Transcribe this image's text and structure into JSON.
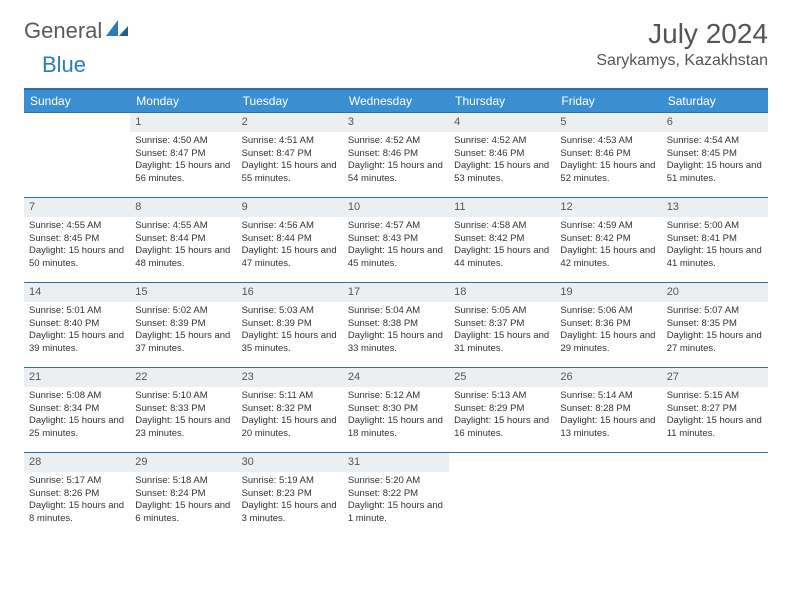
{
  "brand": {
    "part1": "General",
    "part2": "Blue"
  },
  "title": "July 2024",
  "location": "Sarykamys, Kazakhstan",
  "weekdays": [
    "Sunday",
    "Monday",
    "Tuesday",
    "Wednesday",
    "Thursday",
    "Friday",
    "Saturday"
  ],
  "colors": {
    "header_bar": "#3b8fd1",
    "rule": "#2f6fa3",
    "daynum_bg": "#eceff1",
    "text": "#333333",
    "title": "#555555"
  },
  "type": "calendar",
  "weeks": [
    [
      {
        "n": "",
        "lines": []
      },
      {
        "n": "1",
        "lines": [
          "Sunrise: 4:50 AM",
          "Sunset: 8:47 PM",
          "Daylight: 15 hours and 56 minutes."
        ]
      },
      {
        "n": "2",
        "lines": [
          "Sunrise: 4:51 AM",
          "Sunset: 8:47 PM",
          "Daylight: 15 hours and 55 minutes."
        ]
      },
      {
        "n": "3",
        "lines": [
          "Sunrise: 4:52 AM",
          "Sunset: 8:46 PM",
          "Daylight: 15 hours and 54 minutes."
        ]
      },
      {
        "n": "4",
        "lines": [
          "Sunrise: 4:52 AM",
          "Sunset: 8:46 PM",
          "Daylight: 15 hours and 53 minutes."
        ]
      },
      {
        "n": "5",
        "lines": [
          "Sunrise: 4:53 AM",
          "Sunset: 8:46 PM",
          "Daylight: 15 hours and 52 minutes."
        ]
      },
      {
        "n": "6",
        "lines": [
          "Sunrise: 4:54 AM",
          "Sunset: 8:45 PM",
          "Daylight: 15 hours and 51 minutes."
        ]
      }
    ],
    [
      {
        "n": "7",
        "lines": [
          "Sunrise: 4:55 AM",
          "Sunset: 8:45 PM",
          "Daylight: 15 hours and 50 minutes."
        ]
      },
      {
        "n": "8",
        "lines": [
          "Sunrise: 4:55 AM",
          "Sunset: 8:44 PM",
          "Daylight: 15 hours and 48 minutes."
        ]
      },
      {
        "n": "9",
        "lines": [
          "Sunrise: 4:56 AM",
          "Sunset: 8:44 PM",
          "Daylight: 15 hours and 47 minutes."
        ]
      },
      {
        "n": "10",
        "lines": [
          "Sunrise: 4:57 AM",
          "Sunset: 8:43 PM",
          "Daylight: 15 hours and 45 minutes."
        ]
      },
      {
        "n": "11",
        "lines": [
          "Sunrise: 4:58 AM",
          "Sunset: 8:42 PM",
          "Daylight: 15 hours and 44 minutes."
        ]
      },
      {
        "n": "12",
        "lines": [
          "Sunrise: 4:59 AM",
          "Sunset: 8:42 PM",
          "Daylight: 15 hours and 42 minutes."
        ]
      },
      {
        "n": "13",
        "lines": [
          "Sunrise: 5:00 AM",
          "Sunset: 8:41 PM",
          "Daylight: 15 hours and 41 minutes."
        ]
      }
    ],
    [
      {
        "n": "14",
        "lines": [
          "Sunrise: 5:01 AM",
          "Sunset: 8:40 PM",
          "Daylight: 15 hours and 39 minutes."
        ]
      },
      {
        "n": "15",
        "lines": [
          "Sunrise: 5:02 AM",
          "Sunset: 8:39 PM",
          "Daylight: 15 hours and 37 minutes."
        ]
      },
      {
        "n": "16",
        "lines": [
          "Sunrise: 5:03 AM",
          "Sunset: 8:39 PM",
          "Daylight: 15 hours and 35 minutes."
        ]
      },
      {
        "n": "17",
        "lines": [
          "Sunrise: 5:04 AM",
          "Sunset: 8:38 PM",
          "Daylight: 15 hours and 33 minutes."
        ]
      },
      {
        "n": "18",
        "lines": [
          "Sunrise: 5:05 AM",
          "Sunset: 8:37 PM",
          "Daylight: 15 hours and 31 minutes."
        ]
      },
      {
        "n": "19",
        "lines": [
          "Sunrise: 5:06 AM",
          "Sunset: 8:36 PM",
          "Daylight: 15 hours and 29 minutes."
        ]
      },
      {
        "n": "20",
        "lines": [
          "Sunrise: 5:07 AM",
          "Sunset: 8:35 PM",
          "Daylight: 15 hours and 27 minutes."
        ]
      }
    ],
    [
      {
        "n": "21",
        "lines": [
          "Sunrise: 5:08 AM",
          "Sunset: 8:34 PM",
          "Daylight: 15 hours and 25 minutes."
        ]
      },
      {
        "n": "22",
        "lines": [
          "Sunrise: 5:10 AM",
          "Sunset: 8:33 PM",
          "Daylight: 15 hours and 23 minutes."
        ]
      },
      {
        "n": "23",
        "lines": [
          "Sunrise: 5:11 AM",
          "Sunset: 8:32 PM",
          "Daylight: 15 hours and 20 minutes."
        ]
      },
      {
        "n": "24",
        "lines": [
          "Sunrise: 5:12 AM",
          "Sunset: 8:30 PM",
          "Daylight: 15 hours and 18 minutes."
        ]
      },
      {
        "n": "25",
        "lines": [
          "Sunrise: 5:13 AM",
          "Sunset: 8:29 PM",
          "Daylight: 15 hours and 16 minutes."
        ]
      },
      {
        "n": "26",
        "lines": [
          "Sunrise: 5:14 AM",
          "Sunset: 8:28 PM",
          "Daylight: 15 hours and 13 minutes."
        ]
      },
      {
        "n": "27",
        "lines": [
          "Sunrise: 5:15 AM",
          "Sunset: 8:27 PM",
          "Daylight: 15 hours and 11 minutes."
        ]
      }
    ],
    [
      {
        "n": "28",
        "lines": [
          "Sunrise: 5:17 AM",
          "Sunset: 8:26 PM",
          "Daylight: 15 hours and 8 minutes."
        ]
      },
      {
        "n": "29",
        "lines": [
          "Sunrise: 5:18 AM",
          "Sunset: 8:24 PM",
          "Daylight: 15 hours and 6 minutes."
        ]
      },
      {
        "n": "30",
        "lines": [
          "Sunrise: 5:19 AM",
          "Sunset: 8:23 PM",
          "Daylight: 15 hours and 3 minutes."
        ]
      },
      {
        "n": "31",
        "lines": [
          "Sunrise: 5:20 AM",
          "Sunset: 8:22 PM",
          "Daylight: 15 hours and 1 minute."
        ]
      },
      {
        "n": "",
        "lines": []
      },
      {
        "n": "",
        "lines": []
      },
      {
        "n": "",
        "lines": []
      }
    ]
  ]
}
